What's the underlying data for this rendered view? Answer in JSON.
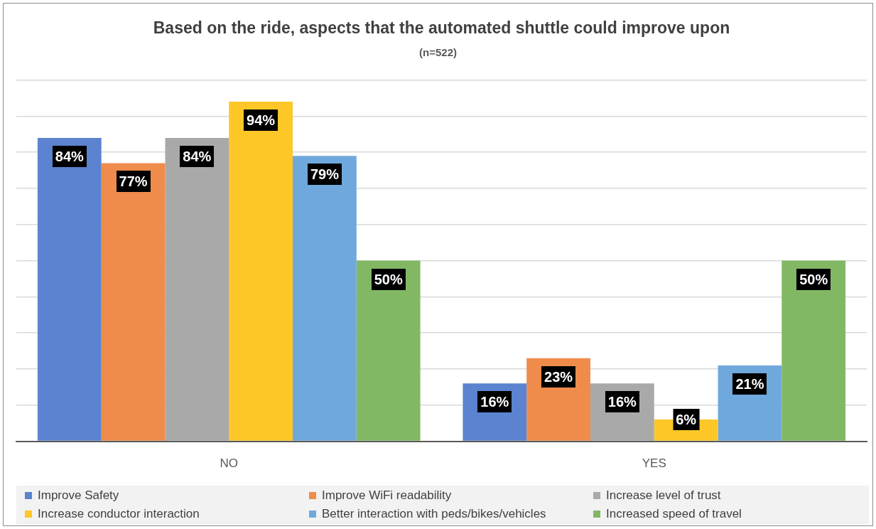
{
  "chart_data": {
    "type": "bar",
    "title": "Based on the ride, aspects that the automated shuttle could improve upon",
    "subtitle": "(n=522)",
    "categories": [
      "NO",
      "YES"
    ],
    "series": [
      {
        "name": "Improve Safety",
        "color": "#5b83cf",
        "values": [
          84,
          16
        ],
        "value_labels": [
          "84%",
          "16%"
        ]
      },
      {
        "name": "Improve WiFi readability",
        "color": "#ef8c4c",
        "values": [
          77,
          23
        ],
        "value_labels": [
          "77%",
          "23%"
        ]
      },
      {
        "name": "Increase level of trust",
        "color": "#a9a9a9",
        "values": [
          84,
          16
        ],
        "value_labels": [
          "84%",
          "16%"
        ]
      },
      {
        "name": "Increase conductor interaction",
        "color": "#fdc728",
        "values": [
          94,
          6
        ],
        "value_labels": [
          "94%",
          "6%"
        ]
      },
      {
        "name": "Better interaction with peds/bikes/vehicles",
        "color": "#6fa8dc",
        "values": [
          79,
          21
        ],
        "value_labels": [
          "79%",
          "21%"
        ]
      },
      {
        "name": "Increased speed of travel",
        "color": "#82b864",
        "values": [
          50,
          50
        ],
        "value_labels": [
          "50%",
          "50%"
        ]
      }
    ],
    "ylim": [
      0,
      100
    ],
    "yticks": [
      {
        "value": 0,
        "label": null
      },
      {
        "value": 10,
        "label": null
      },
      {
        "value": 20,
        "label": null
      },
      {
        "value": 30,
        "label": null
      },
      {
        "value": 40,
        "label": null
      },
      {
        "value": 50,
        "label": null
      },
      {
        "value": 60,
        "label": null
      },
      {
        "value": 70,
        "label": null
      },
      {
        "value": 80,
        "label": null
      },
      {
        "value": 90,
        "label": null
      },
      {
        "value": 100,
        "label": null
      }
    ],
    "tick_labels": "x",
    "grid": "y",
    "legend": "bottom"
  }
}
